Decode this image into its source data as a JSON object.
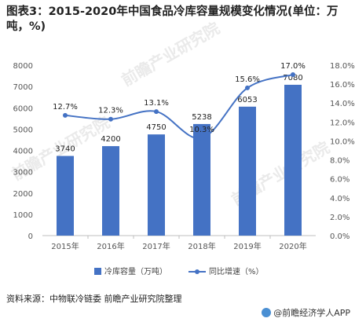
{
  "title": "图表3：2015-2020年中国食品冷库容量规模变化情况(单位：万吨，%)",
  "source": "资料来源：中物联冷链委 前瞻产业研究院整理",
  "credit": "@前瞻经济学人APP",
  "watermark": "前瞻产业研究院",
  "chart_data": {
    "type": "bar",
    "categories": [
      "2015年",
      "2016年",
      "2017年",
      "2018年",
      "2019年",
      "2020年"
    ],
    "series": [
      {
        "name": "冷库容量（万吨）",
        "type": "bar",
        "axis": "left",
        "values": [
          3740,
          4200,
          4750,
          5238,
          6053,
          7080
        ],
        "labels": [
          "3740",
          "4200",
          "4750",
          "5238",
          "6053",
          "7080"
        ]
      },
      {
        "name": "同比增速（%）",
        "type": "line",
        "axis": "right",
        "values": [
          12.7,
          12.3,
          13.1,
          10.3,
          15.6,
          17.0
        ],
        "labels": [
          "12.7%",
          "12.3%",
          "13.1%",
          "10.3%",
          "15.6%",
          "17.0%"
        ]
      }
    ],
    "left_axis": {
      "ylim": [
        0,
        8000
      ],
      "ticks": [
        0,
        1000,
        2000,
        3000,
        4000,
        5000,
        6000,
        7000,
        8000
      ]
    },
    "right_axis": {
      "ylim": [
        0,
        18
      ],
      "ticks": [
        "0.0%",
        "2.0%",
        "4.0%",
        "6.0%",
        "8.0%",
        "10.0%",
        "12.0%",
        "14.0%",
        "16.0%",
        "18.0%"
      ]
    },
    "grid": false,
    "legend": "bottom",
    "colors": {
      "bar": "#4472c4",
      "line": "#4472c4",
      "axis": "#bfbfbf",
      "text": "#555555"
    }
  }
}
